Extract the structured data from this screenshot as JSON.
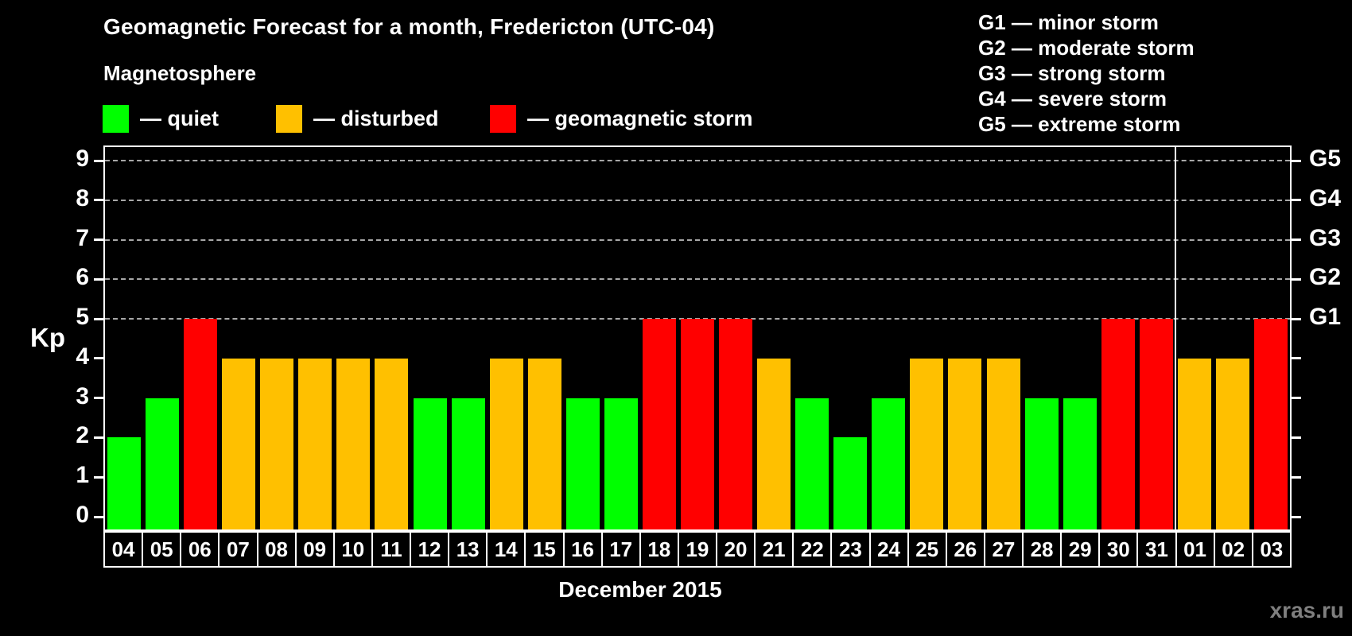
{
  "title": "Geomagnetic Forecast for a month, Fredericton (UTC-04)",
  "subtitle": "Magnetosphere",
  "legend": {
    "items": [
      {
        "key": "quiet",
        "label": "— quiet",
        "color": "#00ff00"
      },
      {
        "key": "disturbed",
        "label": "— disturbed",
        "color": "#ffc000"
      },
      {
        "key": "storm",
        "label": "— geomagnetic storm",
        "color": "#ff0000"
      }
    ]
  },
  "g_scale_legend": [
    "G1 — minor storm",
    "G2 — moderate storm",
    "G3 — strong storm",
    "G4 — severe storm",
    "G5 — extreme storm"
  ],
  "footer": {
    "caption": "December 2015",
    "watermark": "xras.ru"
  },
  "chart_data": {
    "type": "bar",
    "title": "Geomagnetic Forecast for a month, Fredericton (UTC-04)",
    "ylabel": "Kp",
    "xlabel": "December 2015",
    "ylim": [
      0,
      9
    ],
    "yticks": [
      0,
      1,
      2,
      3,
      4,
      5,
      6,
      7,
      8,
      9
    ],
    "gridlines_at": [
      5,
      6,
      7,
      8,
      9
    ],
    "grid": "dashed, only at storm levels 5-9",
    "legend_position": "top",
    "right_axis_labels": [
      {
        "value": 5,
        "label": "G1"
      },
      {
        "value": 6,
        "label": "G2"
      },
      {
        "value": 7,
        "label": "G3"
      },
      {
        "value": 8,
        "label": "G4"
      },
      {
        "value": 9,
        "label": "G5"
      }
    ],
    "categories": [
      "04",
      "05",
      "06",
      "07",
      "08",
      "09",
      "10",
      "11",
      "12",
      "13",
      "14",
      "15",
      "16",
      "17",
      "18",
      "19",
      "20",
      "21",
      "22",
      "23",
      "24",
      "25",
      "26",
      "27",
      "28",
      "29",
      "30",
      "31",
      "01",
      "02",
      "03"
    ],
    "values": [
      2,
      3,
      5,
      4,
      4,
      4,
      4,
      4,
      3,
      3,
      4,
      4,
      3,
      3,
      5,
      5,
      5,
      4,
      3,
      2,
      3,
      4,
      4,
      4,
      3,
      3,
      5,
      5,
      4,
      4,
      5
    ],
    "statuses": [
      "quiet",
      "quiet",
      "storm",
      "disturbed",
      "disturbed",
      "disturbed",
      "disturbed",
      "disturbed",
      "quiet",
      "quiet",
      "disturbed",
      "disturbed",
      "quiet",
      "quiet",
      "storm",
      "storm",
      "storm",
      "disturbed",
      "quiet",
      "quiet",
      "quiet",
      "disturbed",
      "disturbed",
      "disturbed",
      "quiet",
      "quiet",
      "storm",
      "storm",
      "disturbed",
      "disturbed",
      "storm"
    ],
    "status_colors": {
      "quiet": "#00ff00",
      "disturbed": "#ffc000",
      "storm": "#ff0000"
    },
    "month_separator_after_index": 27
  }
}
